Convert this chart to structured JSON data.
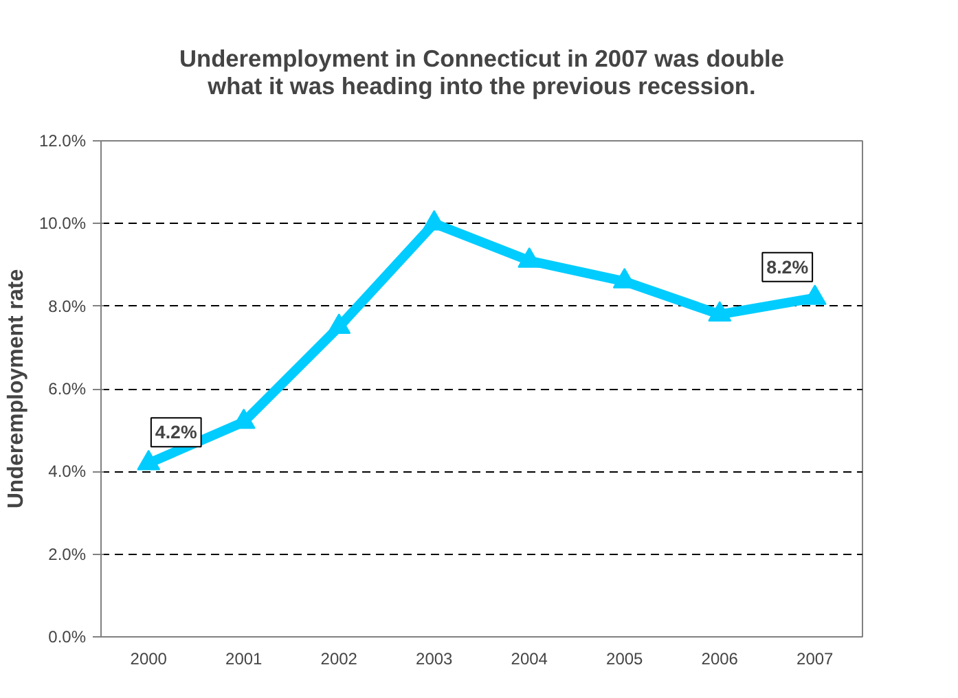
{
  "chart_data": {
    "type": "line",
    "title": "Underemployment in Connecticut in 2007 was double\nwhat it was heading into the previous recession.",
    "ylabel": "Underemployment rate",
    "categories": [
      "2000",
      "2001",
      "2002",
      "2003",
      "2004",
      "2005",
      "2006",
      "2007"
    ],
    "series": [
      {
        "color": "#00ccff",
        "values": [
          4.2,
          5.2,
          7.5,
          10.0,
          9.1,
          8.6,
          7.8,
          8.2
        ],
        "value_labels": [
          "4.2%",
          null,
          null,
          null,
          null,
          null,
          null,
          "8.2%"
        ]
      }
    ],
    "ylim": [
      0,
      12
    ],
    "yticks": [
      {
        "value": 0,
        "label": "0.0%"
      },
      {
        "value": 2,
        "label": "2.0%"
      },
      {
        "value": 4,
        "label": "4.0%"
      },
      {
        "value": 6,
        "label": "6.0%"
      },
      {
        "value": 8,
        "label": "8.0%"
      },
      {
        "value": 10,
        "label": "10.0%"
      },
      {
        "value": 12,
        "label": "12.0%"
      }
    ],
    "grid": "y",
    "marker": "triangle",
    "line_style": "solid"
  }
}
